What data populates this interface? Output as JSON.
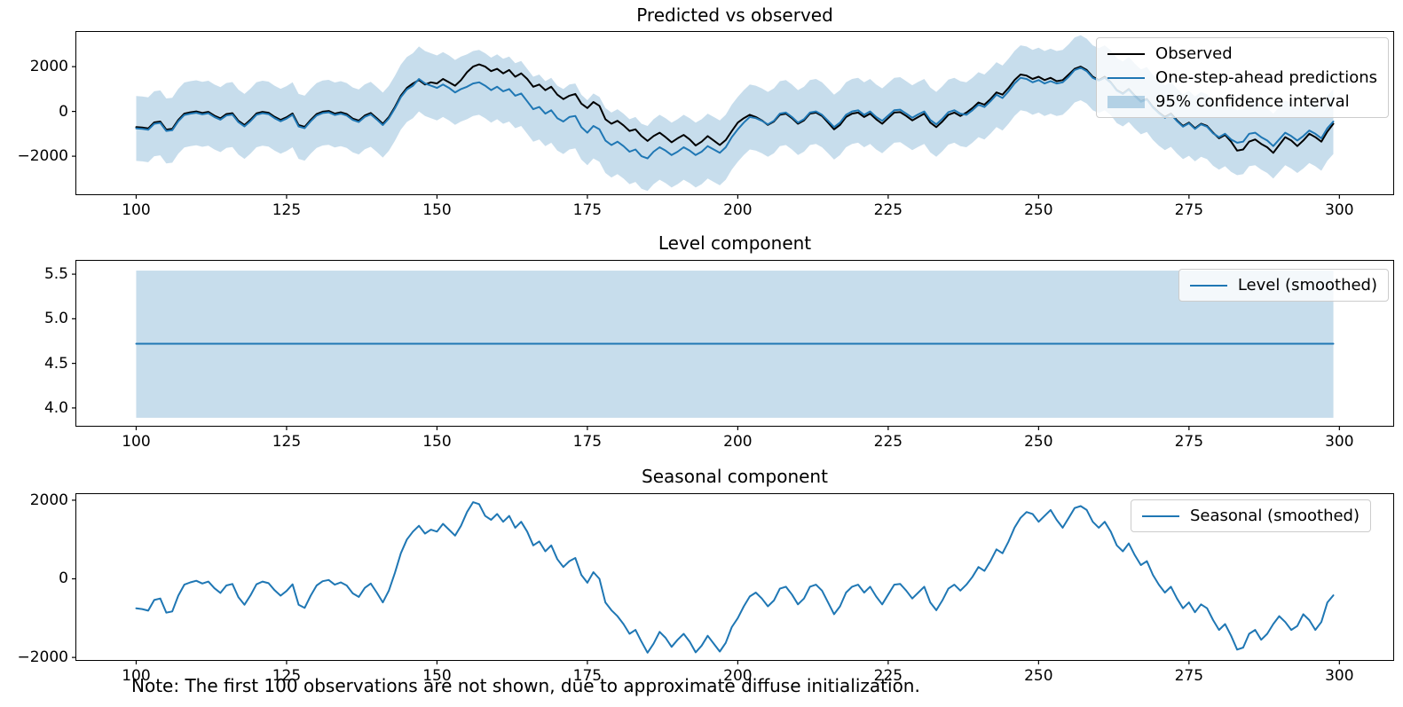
{
  "figure": {
    "background": "#ffffff",
    "note": "Note: The first 100 observations are not shown, due to approximate diffuse initialization."
  },
  "colors": {
    "observed": "#000000",
    "prediction": "#1f77b4",
    "confidence_band": "#1f77b4",
    "confidence_band_opacity": 0.25,
    "axis": "#000000",
    "legend_border": "#cccccc"
  },
  "chart_data": [
    {
      "type": "line",
      "title": "Predicted vs observed",
      "xlim": [
        90.05,
        308.95
      ],
      "ylim": [
        -3700,
        3550
      ],
      "x_start": 100,
      "x_step": 1,
      "xticks": [
        100,
        125,
        150,
        175,
        200,
        225,
        250,
        275,
        300
      ],
      "yticks": [
        {
          "v": 2000,
          "label": "2000"
        },
        {
          "v": 0,
          "label": "0"
        },
        {
          "v": -2000,
          "label": "−2000"
        }
      ],
      "band": {
        "type": "around-series",
        "series_index": 1,
        "halfwidth": 1450,
        "label": "95% confidence interval",
        "color": "#1f77b4",
        "opacity": 0.25
      },
      "series": [
        {
          "name": "Observed",
          "color": "#000000",
          "values": [
            -700,
            -720,
            -760,
            -490,
            -450,
            -810,
            -780,
            -380,
            -100,
            -40,
            0,
            -70,
            -20,
            -190,
            -310,
            -120,
            -80,
            -420,
            -610,
            -370,
            -90,
            -20,
            -60,
            -240,
            -380,
            -260,
            -90,
            -610,
            -690,
            -380,
            -120,
            -10,
            20,
            -100,
            -40,
            -120,
            -320,
            -410,
            -180,
            -70,
            -300,
            -550,
            -250,
            200,
            700,
            1050,
            1250,
            1400,
            1200,
            1300,
            1250,
            1450,
            1300,
            1150,
            1400,
            1750,
            2000,
            2100,
            2000,
            1800,
            1900,
            1700,
            1850,
            1550,
            1700,
            1450,
            1100,
            1200,
            950,
            1100,
            750,
            550,
            700,
            780,
            350,
            150,
            420,
            250,
            -350,
            -550,
            -420,
            -620,
            -870,
            -800,
            -1100,
            -1320,
            -1100,
            -950,
            -1150,
            -1380,
            -1200,
            -1050,
            -1250,
            -1520,
            -1350,
            -1100,
            -1300,
            -1500,
            -1280,
            -880,
            -500,
            -300,
            -150,
            -250,
            -400,
            -600,
            -450,
            -150,
            -100,
            -300,
            -550,
            -400,
            -100,
            -50,
            -200,
            -500,
            -800,
            -600,
            -250,
            -100,
            -50,
            -250,
            -100,
            -350,
            -550,
            -300,
            -50,
            -30,
            -200,
            -400,
            -250,
            -100,
            -500,
            -700,
            -450,
            -150,
            -50,
            -200,
            -50,
            150,
            400,
            300,
            550,
            850,
            750,
            1050,
            1400,
            1650,
            1600,
            1450,
            1550,
            1400,
            1500,
            1350,
            1400,
            1650,
            1900,
            2000,
            1850,
            1550,
            1400,
            1550,
            1300,
            950,
            800,
            1000,
            700,
            450,
            550,
            200,
            -50,
            -250,
            -100,
            -400,
            -650,
            -500,
            -750,
            -550,
            -650,
            -950,
            -1200,
            -1050,
            -1350,
            -1750,
            -1700,
            -1350,
            -1250,
            -1450,
            -1600,
            -1850,
            -1500,
            -1150,
            -1300,
            -1550,
            -1300,
            -1000,
            -1150,
            -1350,
            -900,
            -550
          ]
        },
        {
          "name": "One-step-ahead predictions",
          "color": "#1f77b4",
          "values": [
            -760,
            -780,
            -820,
            -550,
            -510,
            -870,
            -840,
            -440,
            -160,
            -100,
            -60,
            -130,
            -80,
            -250,
            -370,
            -180,
            -140,
            -480,
            -670,
            -430,
            -150,
            -80,
            -120,
            -300,
            -440,
            -320,
            -150,
            -670,
            -750,
            -440,
            -180,
            -70,
            -40,
            -160,
            -100,
            -180,
            -380,
            -470,
            -240,
            -130,
            -360,
            -610,
            -310,
            140,
            640,
            980,
            1150,
            1450,
            1250,
            1150,
            1050,
            1200,
            1050,
            850,
            1000,
            1100,
            1250,
            1300,
            1150,
            950,
            1100,
            900,
            1000,
            700,
            800,
            450,
            100,
            200,
            -100,
            50,
            -300,
            -450,
            -250,
            -200,
            -700,
            -950,
            -650,
            -800,
            -1300,
            -1500,
            -1350,
            -1550,
            -1800,
            -1700,
            -2000,
            -2100,
            -1800,
            -1600,
            -1750,
            -1950,
            -1800,
            -1600,
            -1750,
            -1950,
            -1800,
            -1550,
            -1700,
            -1850,
            -1600,
            -1150,
            -800,
            -500,
            -250,
            -300,
            -420,
            -580,
            -420,
            -100,
            -50,
            -250,
            -500,
            -350,
            -50,
            0,
            -150,
            -420,
            -700,
            -500,
            -150,
            0,
            50,
            -150,
            0,
            -250,
            -420,
            -180,
            50,
            80,
            -100,
            -280,
            -130,
            0,
            -380,
            -580,
            -330,
            -30,
            50,
            -100,
            -150,
            50,
            300,
            200,
            450,
            750,
            600,
            900,
            1250,
            1500,
            1450,
            1300,
            1400,
            1250,
            1350,
            1250,
            1300,
            1550,
            1850,
            1950,
            1800,
            1500,
            1380,
            1500,
            1280,
            930,
            780,
            980,
            680,
            430,
            530,
            180,
            -80,
            -280,
            -130,
            -430,
            -680,
            -530,
            -780,
            -580,
            -680,
            -980,
            -1150,
            -1000,
            -1250,
            -1400,
            -1350,
            -1000,
            -950,
            -1150,
            -1300,
            -1550,
            -1250,
            -950,
            -1100,
            -1300,
            -1100,
            -850,
            -1000,
            -1200,
            -750,
            -450
          ]
        }
      ]
    },
    {
      "type": "line",
      "title": "Level component",
      "xlim": [
        90.05,
        308.95
      ],
      "ylim": [
        3.8,
        5.65
      ],
      "xticks": [
        100,
        125,
        150,
        175,
        200,
        225,
        250,
        275,
        300
      ],
      "yticks": [
        {
          "v": 5.5,
          "label": "5.5"
        },
        {
          "v": 5.0,
          "label": "5.0"
        },
        {
          "v": 4.5,
          "label": "4.5"
        },
        {
          "v": 4.0,
          "label": "4.0"
        }
      ],
      "band": {
        "type": "rect",
        "x": [
          100,
          299
        ],
        "y": [
          3.89,
          5.54
        ],
        "color": "#1f77b4",
        "opacity": 0.25
      },
      "series": [
        {
          "name": "Level (smoothed)",
          "color": "#1f77b4",
          "constant": 4.72,
          "x_range": [
            100,
            299
          ]
        }
      ]
    },
    {
      "type": "line",
      "title": "Seasonal component",
      "xlim": [
        90.05,
        308.95
      ],
      "ylim": [
        -2065,
        2155
      ],
      "x_start": 100,
      "x_step": 1,
      "xticks": [
        100,
        125,
        150,
        175,
        200,
        225,
        250,
        275,
        300
      ],
      "yticks": [
        {
          "v": 2000,
          "label": "2000"
        },
        {
          "v": 0,
          "label": "0"
        },
        {
          "v": -2000,
          "label": "−2000"
        }
      ],
      "series": [
        {
          "name": "Seasonal (smoothed)",
          "color": "#1f77b4",
          "values": [
            -750,
            -770,
            -810,
            -540,
            -500,
            -860,
            -830,
            -430,
            -150,
            -90,
            -50,
            -120,
            -70,
            -240,
            -360,
            -170,
            -130,
            -470,
            -660,
            -420,
            -140,
            -70,
            -110,
            -290,
            -430,
            -310,
            -140,
            -660,
            -740,
            -430,
            -170,
            -60,
            -30,
            -150,
            -90,
            -170,
            -370,
            -460,
            -230,
            -120,
            -350,
            -600,
            -300,
            150,
            650,
            1000,
            1200,
            1350,
            1150,
            1250,
            1200,
            1400,
            1250,
            1100,
            1350,
            1700,
            1950,
            1900,
            1600,
            1500,
            1650,
            1450,
            1600,
            1300,
            1450,
            1200,
            850,
            950,
            700,
            850,
            500,
            300,
            450,
            530,
            100,
            -100,
            170,
            0,
            -600,
            -800,
            -950,
            -1150,
            -1400,
            -1300,
            -1600,
            -1880,
            -1650,
            -1350,
            -1500,
            -1730,
            -1550,
            -1400,
            -1600,
            -1870,
            -1700,
            -1450,
            -1650,
            -1850,
            -1630,
            -1230,
            -1000,
            -700,
            -450,
            -350,
            -500,
            -700,
            -550,
            -250,
            -200,
            -400,
            -650,
            -500,
            -200,
            -150,
            -300,
            -600,
            -900,
            -700,
            -350,
            -200,
            -150,
            -350,
            -200,
            -450,
            -650,
            -400,
            -150,
            -130,
            -300,
            -500,
            -350,
            -200,
            -600,
            -800,
            -550,
            -250,
            -150,
            -300,
            -150,
            50,
            300,
            200,
            450,
            750,
            650,
            950,
            1300,
            1550,
            1700,
            1650,
            1450,
            1600,
            1750,
            1500,
            1300,
            1550,
            1800,
            1850,
            1750,
            1450,
            1300,
            1450,
            1200,
            850,
            700,
            900,
            600,
            350,
            450,
            100,
            -150,
            -350,
            -200,
            -500,
            -750,
            -600,
            -850,
            -650,
            -750,
            -1050,
            -1300,
            -1150,
            -1450,
            -1800,
            -1750,
            -1400,
            -1300,
            -1550,
            -1400,
            -1150,
            -950,
            -1100,
            -1300,
            -1200,
            -900,
            -1050,
            -1300,
            -1100,
            -600,
            -420
          ]
        }
      ]
    }
  ]
}
